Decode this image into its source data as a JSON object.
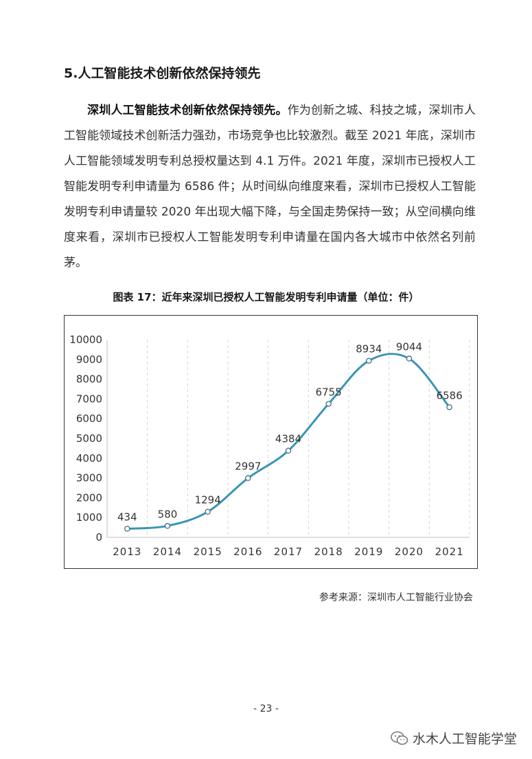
{
  "section": {
    "title": "5.人工智能技术创新依然保持领先"
  },
  "paragraph": {
    "lead": "深圳人工智能技术创新依然保持领先。",
    "body": "作为创新之城、科技之城，深圳市人工智能领域技术创新活力强劲，市场竞争也比较激烈。截至 2021 年底，深圳市人工智能领域发明专利总授权量达到 4.1 万件。2021 年度，深圳市已授权人工智能发明专利申请量为 6586 件；从时间纵向维度来看，深圳市已授权人工智能发明专利申请量较 2020 年出现大幅下降，与全国走势保持一致；从空间横向维度来看，深圳市已授权人工智能发明专利申请量在国内各大城市中依然名列前茅。"
  },
  "figure": {
    "caption": "图表 17：近年来深圳已授权人工智能发明专利申请量（单位：件）",
    "source": "参考来源：深圳市人工智能行业协会"
  },
  "chart_data": {
    "type": "line",
    "title": "",
    "xlabel": "",
    "ylabel": "",
    "categories": [
      "2013",
      "2014",
      "2015",
      "2016",
      "2017",
      "2018",
      "2019",
      "2020",
      "2021"
    ],
    "values": [
      434,
      580,
      1294,
      2997,
      4384,
      6755,
      8934,
      9044,
      6586
    ],
    "data_labels": [
      "434",
      "580",
      "1294",
      "2997",
      "4384",
      "6755",
      "8934",
      "9044",
      "6586"
    ],
    "yticks": [
      "0",
      "1000",
      "2000",
      "3000",
      "4000",
      "5000",
      "6000",
      "7000",
      "8000",
      "9000",
      "10000"
    ],
    "ylim": [
      0,
      10000
    ],
    "smooth": true,
    "grid": "vertical dashed",
    "legend": "none",
    "line_color": "#3a93b5"
  },
  "footer": {
    "page_number": "- 23 -",
    "watermark": "水木人工智能学堂",
    "watermark_icon": "wechat-icon"
  }
}
